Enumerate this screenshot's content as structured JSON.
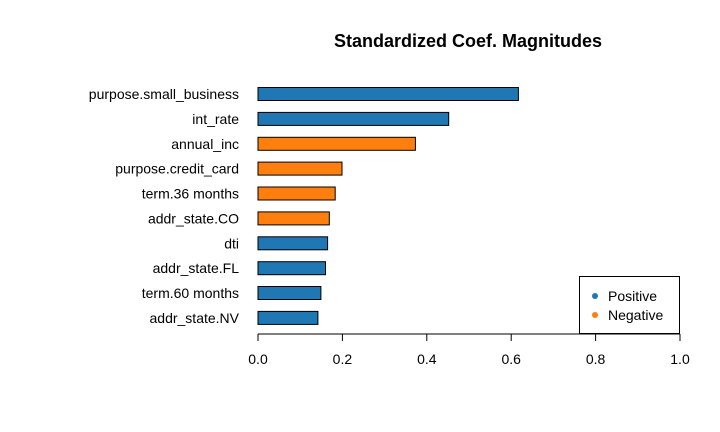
{
  "chart_data": {
    "type": "bar",
    "orientation": "horizontal",
    "title": "Standardized Coef. Magnitudes",
    "xlabel": "",
    "ylabel": "",
    "xlim": [
      0,
      1
    ],
    "xticks": [
      "0.0",
      "0.2",
      "0.4",
      "0.6",
      "0.8",
      "1.0"
    ],
    "categories": [
      "purpose.small_business",
      "int_rate",
      "annual_inc",
      "purpose.credit_card",
      "term.36 months",
      "addr_state.CO",
      "dti",
      "addr_state.FL",
      "term.60 months",
      "addr_state.NV"
    ],
    "values": [
      0.617,
      0.452,
      0.373,
      0.199,
      0.183,
      0.169,
      0.165,
      0.16,
      0.149,
      0.142
    ],
    "signs": [
      "Positive",
      "Positive",
      "Negative",
      "Negative",
      "Negative",
      "Negative",
      "Positive",
      "Positive",
      "Positive",
      "Positive"
    ],
    "legend": {
      "placement": "bottom-right",
      "entries": [
        {
          "label": "Positive",
          "color": "#1f77b4"
        },
        {
          "label": "Negative",
          "color": "#ff7f0e"
        }
      ]
    },
    "grid": false
  }
}
